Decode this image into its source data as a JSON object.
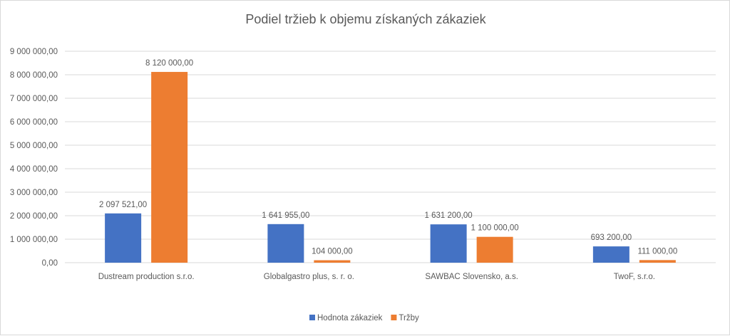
{
  "chart_data": {
    "type": "bar",
    "title": "Podiel tržieb k objemu získaných zákaziek",
    "xlabel": "",
    "ylabel": "",
    "categories": [
      "Dustream production s.r.o.",
      "Globalgastro plus, s. r. o.",
      "SAWBAC Slovensko, a.s.",
      "TwoF, s.r.o."
    ],
    "series": [
      {
        "name": "Hodnota zákaziek",
        "color": "#4472C4",
        "values": [
          2097521,
          1641955,
          1631200,
          693200
        ],
        "labels": [
          "2 097 521,00",
          "1 641 955,00",
          "1 631 200,00",
          "693 200,00"
        ]
      },
      {
        "name": "Tržby",
        "color": "#ED7D31",
        "values": [
          8120000,
          104000,
          1100000,
          111000
        ],
        "labels": [
          "8 120 000,00",
          "104 000,00",
          "1 100 000,00",
          "111 000,00"
        ]
      }
    ],
    "ylim": [
      0,
      9000000
    ],
    "yticks": [
      0,
      1000000,
      2000000,
      3000000,
      4000000,
      5000000,
      6000000,
      7000000,
      8000000,
      9000000
    ],
    "ytick_labels": [
      "0,00",
      "1 000 000,00",
      "2 000 000,00",
      "3 000 000,00",
      "4 000 000,00",
      "5 000 000,00",
      "6 000 000,00",
      "7 000 000,00",
      "8 000 000,00",
      "9 000 000,00"
    ],
    "grid": true,
    "legend_position": "bottom",
    "gridline_color": "#D9D9D9"
  }
}
